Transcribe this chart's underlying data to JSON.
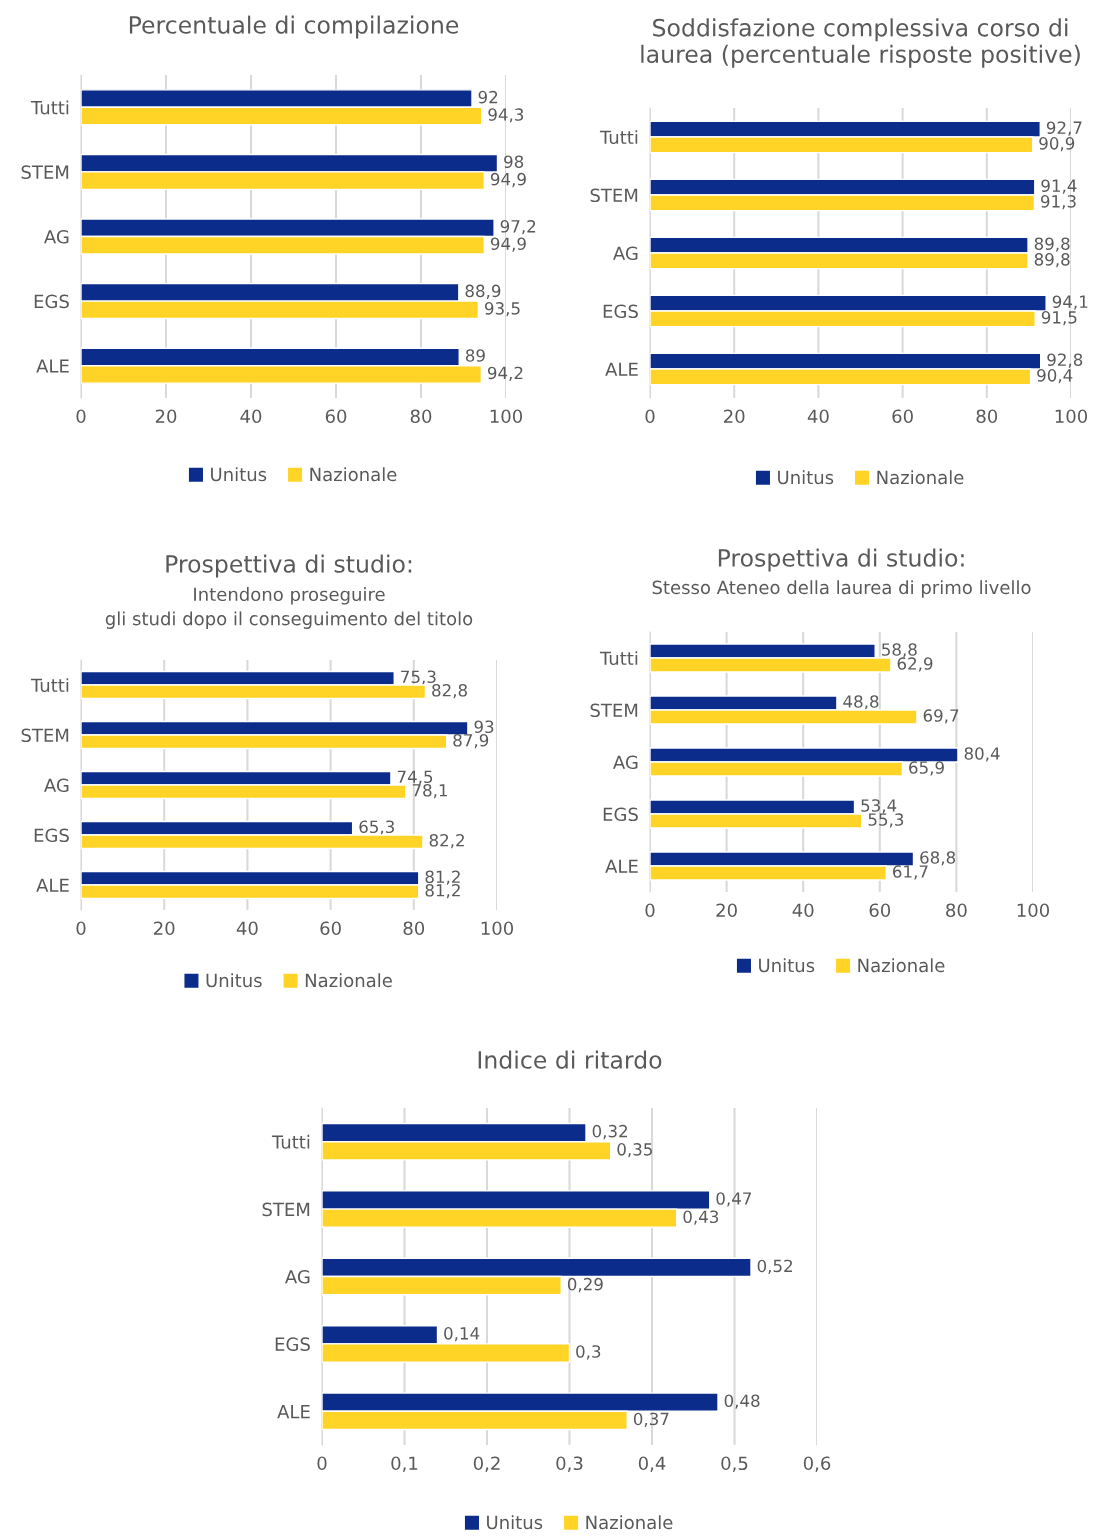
{
  "chart_data": [
    {
      "type": "bar",
      "orientation": "horizontal",
      "title": "Percentuale di compilazione",
      "categories": [
        "Tutti",
        "STEM",
        "AG",
        "EGS",
        "ALE"
      ],
      "xlim": [
        0,
        100
      ],
      "xticks": [
        0,
        20,
        40,
        60,
        80,
        100
      ],
      "grid": "x",
      "legend": "bottom",
      "series": [
        {
          "name": "Unitus",
          "color": "#0b2c8a",
          "values": [
            92,
            98,
            97.2,
            88.9,
            89
          ],
          "value_labels": [
            "92",
            "98",
            "97,2",
            "88,9",
            "89"
          ]
        },
        {
          "name": "Nazionale",
          "color": "#ffd426",
          "values": [
            94.3,
            94.9,
            94.9,
            93.5,
            94.2
          ],
          "value_labels": [
            "94,3",
            "94,9",
            "94,9",
            "93,5",
            "94,2"
          ]
        }
      ]
    },
    {
      "type": "bar",
      "orientation": "horizontal",
      "title": "Soddisfazione complessiva corso di\nlaurea (percentuale risposte positive)",
      "categories": [
        "Tutti",
        "STEM",
        "AG",
        "EGS",
        "ALE"
      ],
      "xlim": [
        0,
        100
      ],
      "xticks": [
        0,
        20,
        40,
        60,
        80,
        100
      ],
      "grid": "x",
      "legend": "bottom",
      "series": [
        {
          "name": "Unitus",
          "color": "#0b2c8a",
          "values": [
            92.7,
            91.4,
            89.8,
            94.1,
            92.8
          ],
          "value_labels": [
            "92,7",
            "91,4",
            "89,8",
            "94,1",
            "92,8"
          ]
        },
        {
          "name": "Nazionale",
          "color": "#ffd426",
          "values": [
            90.9,
            91.3,
            89.8,
            91.5,
            90.4
          ],
          "value_labels": [
            "90,9",
            "91,3",
            "89,8",
            "91,5",
            "90,4"
          ]
        }
      ]
    },
    {
      "type": "bar",
      "orientation": "horizontal",
      "title": "Prospettiva di studio:",
      "subtitle": "Intendono proseguire\ngli studi dopo il conseguimento del titolo",
      "categories": [
        "Tutti",
        "STEM",
        "AG",
        "EGS",
        "ALE"
      ],
      "xlim": [
        0,
        100
      ],
      "xticks": [
        0,
        20,
        40,
        60,
        80,
        100
      ],
      "grid": "x",
      "legend": "bottom",
      "series": [
        {
          "name": "Unitus",
          "color": "#0b2c8a",
          "values": [
            75.3,
            93,
            74.5,
            65.3,
            81.2
          ],
          "value_labels": [
            "75,3",
            "93",
            "74,5",
            "65,3",
            "81,2"
          ]
        },
        {
          "name": "Nazionale",
          "color": "#ffd426",
          "values": [
            82.8,
            87.9,
            78.1,
            82.2,
            81.2
          ],
          "value_labels": [
            "82,8",
            "87,9",
            "78,1",
            "82,2",
            "81,2"
          ]
        }
      ]
    },
    {
      "type": "bar",
      "orientation": "horizontal",
      "title": "Prospettiva di studio:",
      "subtitle": "Stesso Ateneo della laurea di primo livello",
      "categories": [
        "Tutti",
        "STEM",
        "AG",
        "EGS",
        "ALE"
      ],
      "xlim": [
        0,
        100
      ],
      "xticks": [
        0,
        20,
        40,
        60,
        80,
        100
      ],
      "grid": "x",
      "legend": "bottom",
      "series": [
        {
          "name": "Unitus",
          "color": "#0b2c8a",
          "values": [
            58.8,
            48.8,
            80.4,
            53.4,
            68.8
          ],
          "value_labels": [
            "58,8",
            "48,8",
            "80,4",
            "53,4",
            "68,8"
          ]
        },
        {
          "name": "Nazionale",
          "color": "#ffd426",
          "values": [
            62.9,
            69.7,
            65.9,
            55.3,
            61.7
          ],
          "value_labels": [
            "62,9",
            "69,7",
            "65,9",
            "55,3",
            "61,7"
          ]
        }
      ]
    },
    {
      "type": "bar",
      "orientation": "horizontal",
      "title": "Indice di ritardo",
      "categories": [
        "Tutti",
        "STEM",
        "AG",
        "EGS",
        "ALE"
      ],
      "xlim": [
        0,
        0.6
      ],
      "xticks": [
        {
          "value": 0,
          "label": "0"
        },
        {
          "value": 0.1,
          "label": "0,1"
        },
        {
          "value": 0.2,
          "label": "0,2"
        },
        {
          "value": 0.3,
          "label": "0,3"
        },
        {
          "value": 0.4,
          "label": "0,4"
        },
        {
          "value": 0.5,
          "label": "0,5"
        },
        {
          "value": 0.6,
          "label": "0,6"
        }
      ],
      "grid": "x",
      "legend": "bottom",
      "series": [
        {
          "name": "Unitus",
          "color": "#0b2c8a",
          "values": [
            0.32,
            0.47,
            0.52,
            0.14,
            0.48
          ],
          "value_labels": [
            "0,32",
            "0,47",
            "0,52",
            "0,14",
            "0,48"
          ]
        },
        {
          "name": "Nazionale",
          "color": "#ffd426",
          "values": [
            0.35,
            0.43,
            0.29,
            0.3,
            0.37
          ],
          "value_labels": [
            "0,35",
            "0,43",
            "0,29",
            "0,3",
            "0,37"
          ]
        }
      ]
    }
  ]
}
